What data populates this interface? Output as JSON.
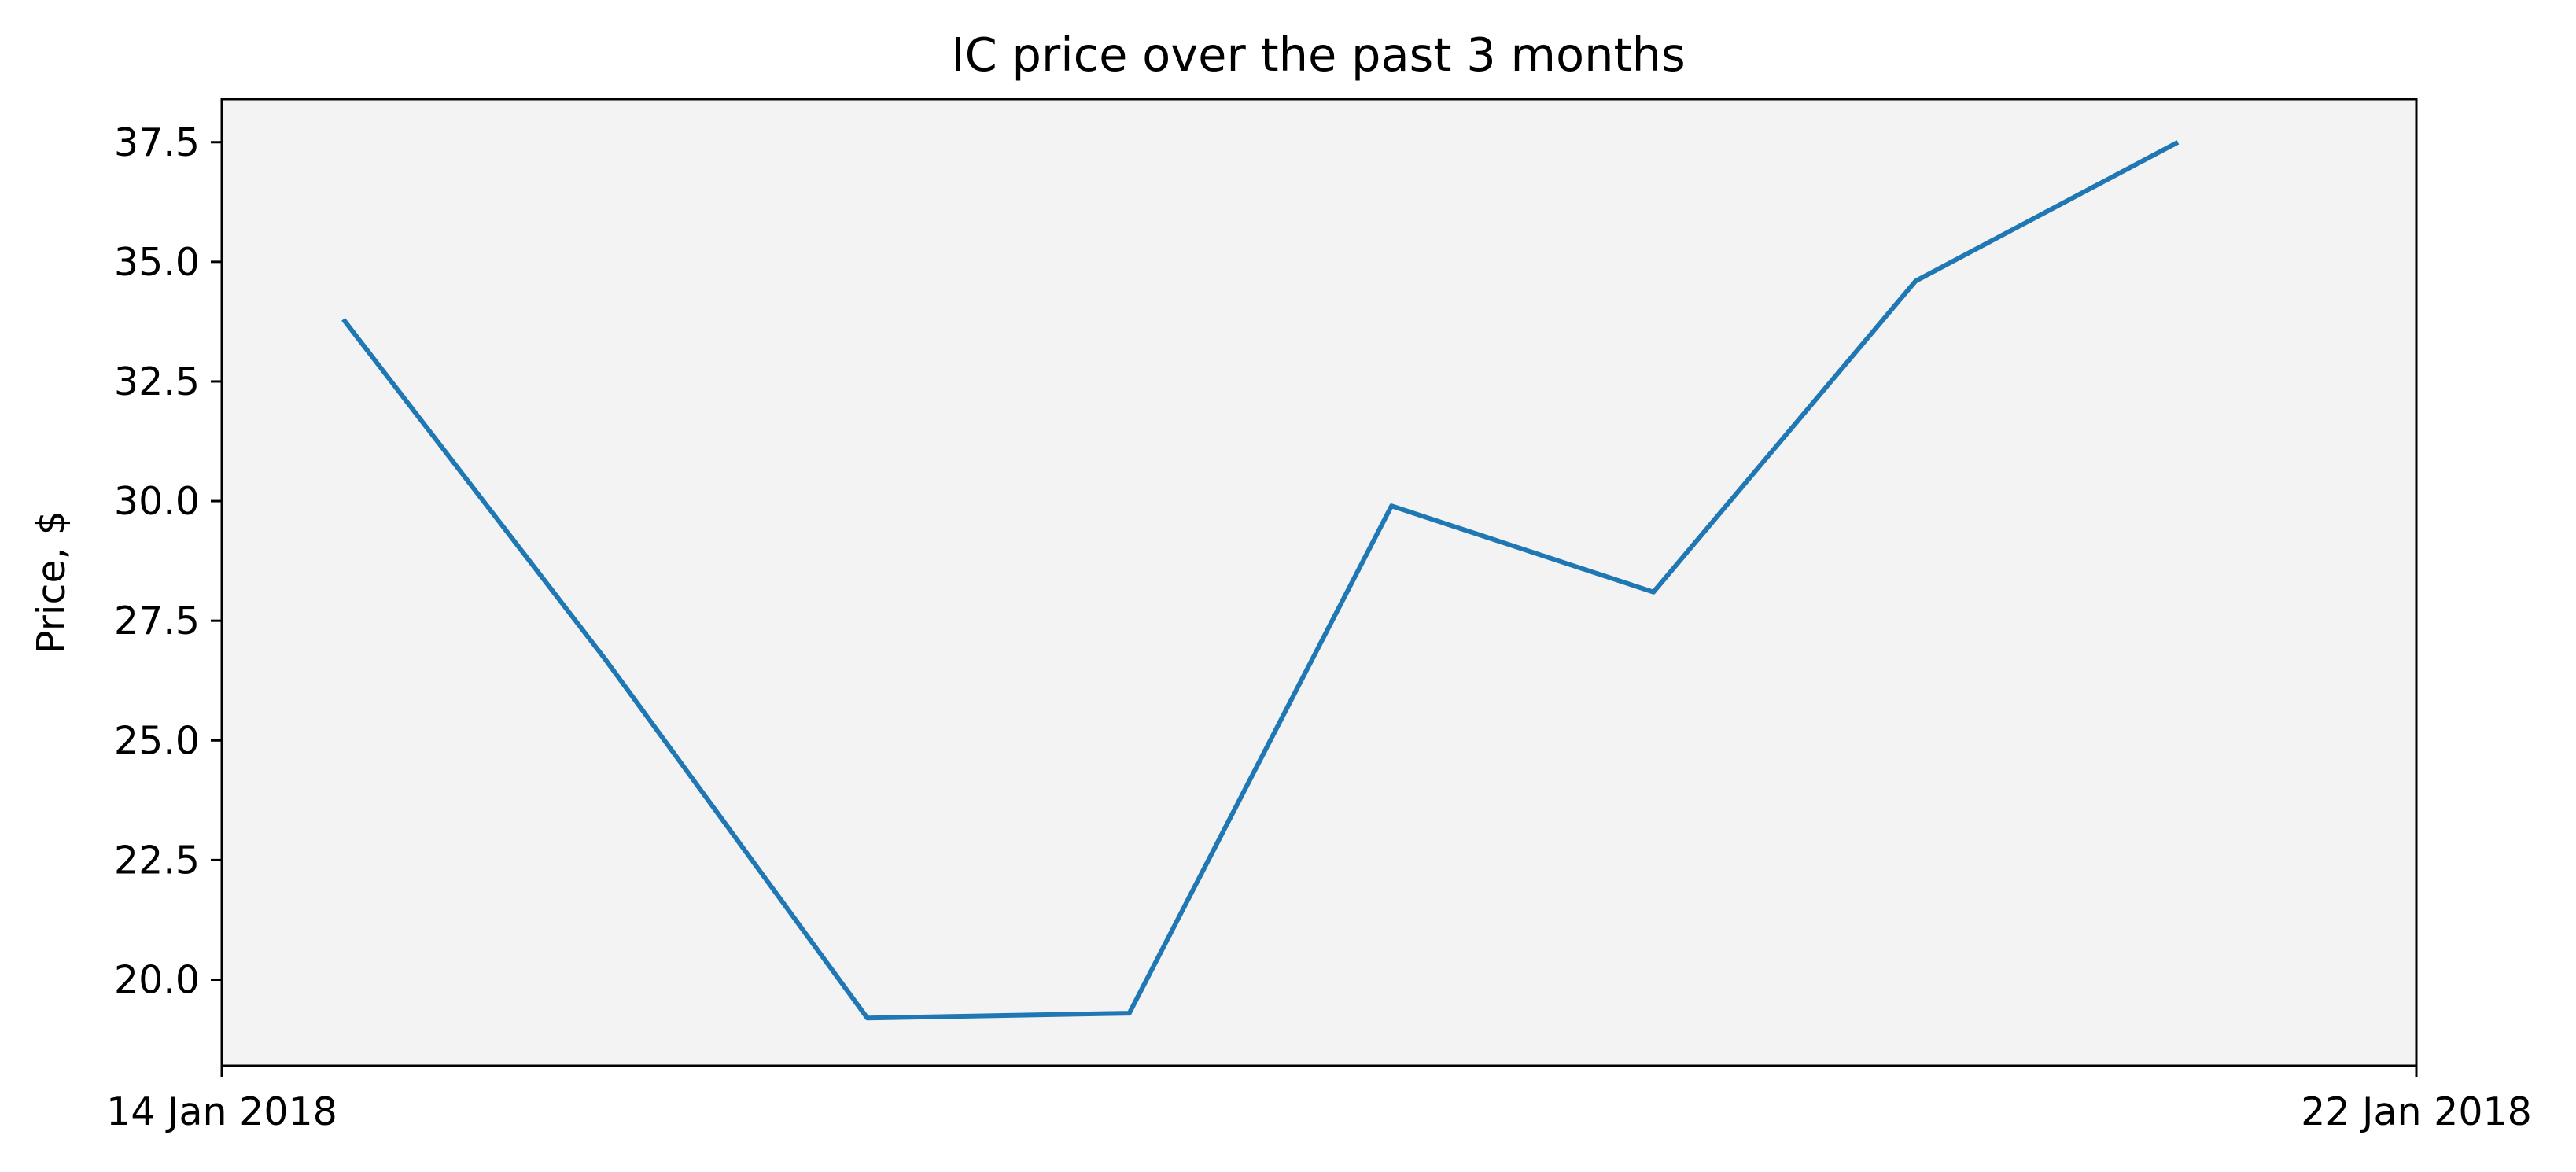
{
  "chart_data": {
    "type": "line",
    "title": "IC price over the past 3 months",
    "xlabel": "",
    "ylabel": "Price, $",
    "x_tick_labels": [
      "14 Jan 2018",
      "22 Jan 2018"
    ],
    "x_range": [
      "14 Jan 2018",
      "22 Jan 2018"
    ],
    "x": [
      "14 Jan 2018 10:37",
      "15 Jan 2018 09:32",
      "16 Jan 2018 08:28",
      "17 Jan 2018 07:24",
      "18 Jan 2018 06:20",
      "19 Jan 2018 05:16",
      "20 Jan 2018 04:12",
      "21 Jan 2018 03:08"
    ],
    "x_days": [
      0.443,
      1.397,
      2.353,
      3.308,
      4.264,
      5.219,
      6.175,
      7.131
    ],
    "y": [
      33.8,
      26.7,
      19.2,
      19.3,
      29.9,
      28.1,
      34.6,
      37.5
    ],
    "ylim": [
      18.2,
      38.4
    ],
    "y_ticks": [
      20.0,
      22.5,
      25.0,
      27.5,
      30.0,
      32.5,
      35.0,
      37.5
    ],
    "series": [
      {
        "color": "#1f77b4"
      }
    ],
    "plot_background": "#f3f3f3",
    "grid": false,
    "legend": "none"
  }
}
